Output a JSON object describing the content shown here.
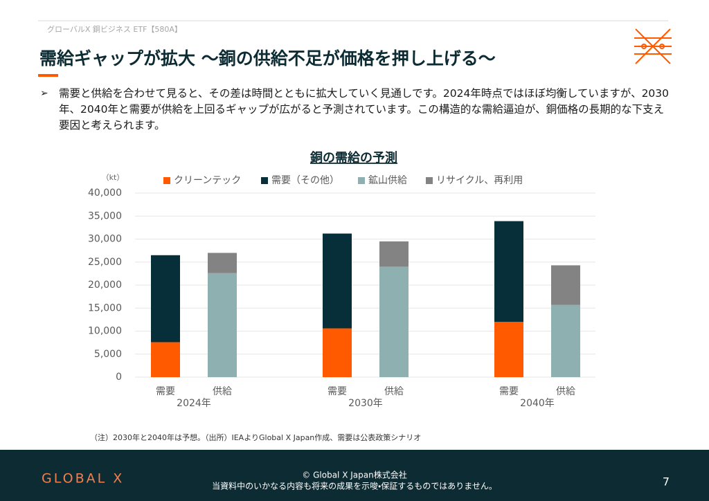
{
  "header": {
    "breadcrumb": "グローバルX 銅ビジネス ETF【580A】",
    "title": "需給ギャップが拡大 ～銅の供給不足が価格を押し上げる～"
  },
  "body": {
    "bullet": "需要と供給を合わせて見ると、その差は時間とともに拡大していく見通しです。2024年時点ではほぼ均衡していますが、2030年、2040年と需要が供給を上回るギャップが広がると予測されています。この構造的な需給逼迫が、銅価格の長期的な下支え要因と考えられます。"
  },
  "chart_data": {
    "type": "bar",
    "stacked": true,
    "title": "銅の需給の予測",
    "unit": "（kt）",
    "categories": [
      "需要",
      "供給",
      "需要",
      "供給",
      "需要",
      "供給"
    ],
    "groups": [
      "2024年",
      "2030年",
      "2040年"
    ],
    "series": [
      {
        "name": "クリーンテック",
        "color": "#ff5a00",
        "values": [
          7600,
          null,
          10600,
          null,
          12000,
          null
        ]
      },
      {
        "name": "需要（その他）",
        "color": "#062f3a",
        "values": [
          18900,
          null,
          20600,
          null,
          21900,
          null
        ]
      },
      {
        "name": "鉱山供給",
        "color": "#8fb0b0",
        "values": [
          null,
          22600,
          null,
          24000,
          null,
          15700
        ]
      },
      {
        "name": "リサイクル、再利用",
        "color": "#838383",
        "values": [
          null,
          4400,
          null,
          5500,
          null,
          8600
        ]
      }
    ],
    "ylim": [
      0,
      40000
    ],
    "yticks": [
      0,
      {
        "value": 5000,
        "label": "5,000"
      },
      {
        "value": 10000,
        "label": "10,000"
      },
      {
        "value": 15000,
        "label": "15,000"
      },
      {
        "value": 20000,
        "label": "20,000"
      },
      {
        "value": 25000,
        "label": "25,000"
      },
      {
        "value": 30000,
        "label": "30,000"
      },
      {
        "value": 35000,
        "label": "35,000"
      },
      {
        "value": 40000,
        "label": "40,000"
      }
    ],
    "grid": true
  },
  "footnote": "（注）2030年と2040年は予想。（出所）IEAよりGlobal X Japan作成、需要は公表政策シナリオ",
  "footer": {
    "logo": "GLOBAL X",
    "copyright": "© Global X Japan株式会社",
    "disclaimer": "当資料中のいかなる内容も将来の成果を示唆・保証するものではありません。",
    "page": "7"
  }
}
